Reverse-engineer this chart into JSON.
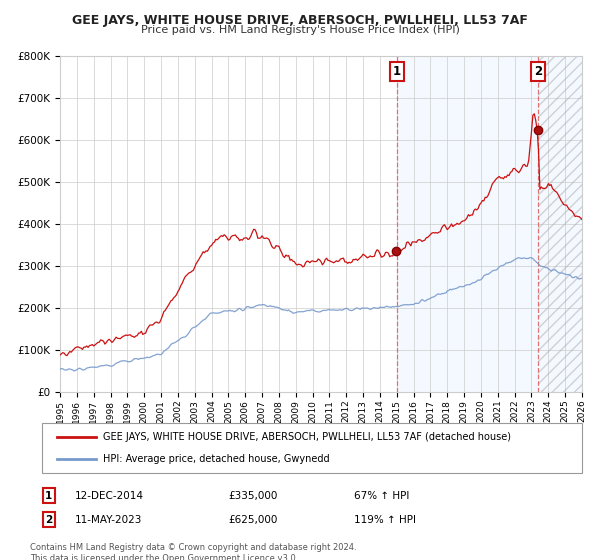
{
  "title": "GEE JAYS, WHITE HOUSE DRIVE, ABERSOCH, PWLLHELI, LL53 7AF",
  "subtitle": "Price paid vs. HM Land Registry's House Price Index (HPI)",
  "red_label": "GEE JAYS, WHITE HOUSE DRIVE, ABERSOCH, PWLLHELI, LL53 7AF (detached house)",
  "blue_label": "HPI: Average price, detached house, Gwynedd",
  "annotation1_date": "12-DEC-2014",
  "annotation1_price": "£335,000",
  "annotation1_hpi": "67% ↑ HPI",
  "annotation2_date": "11-MAY-2023",
  "annotation2_price": "£625,000",
  "annotation2_hpi": "119% ↑ HPI",
  "vline1_x": 2015.0,
  "vline2_x": 2023.37,
  "point1_x": 2014.95,
  "point1_y": 335000,
  "point2_x": 2023.37,
  "point2_y": 625000,
  "ylim": [
    0,
    800000
  ],
  "xlim": [
    1995,
    2026
  ],
  "footer": "Contains HM Land Registry data © Crown copyright and database right 2024.\nThis data is licensed under the Open Government Licence v3.0.",
  "background_color": "#ffffff",
  "plot_bg_color": "#ffffff",
  "shade_color": "#ddeeff",
  "grid_color": "#cccccc",
  "red_color": "#cc1111",
  "blue_color": "#7799cc",
  "title_color": "#222222",
  "text_color": "#333333"
}
